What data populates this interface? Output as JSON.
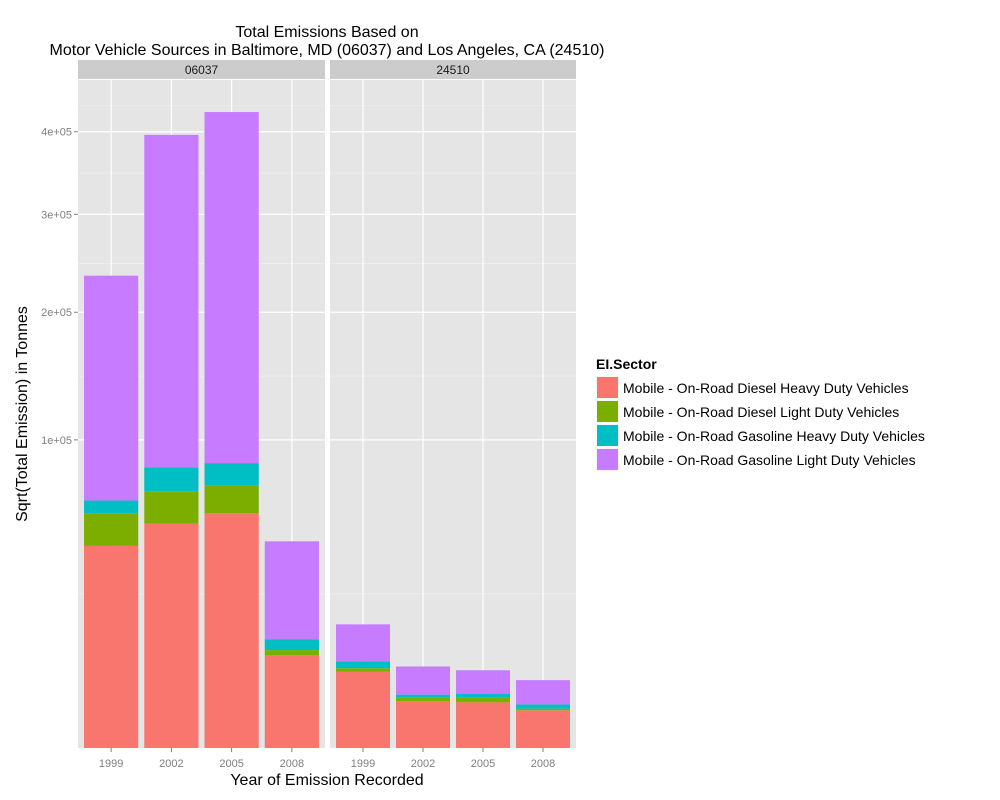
{
  "chart_data": {
    "type": "bar",
    "stacked": true,
    "title_lines": [
      "Total Emissions Based on",
      "Motor Vehicle Sources in Baltimore, MD (06037) and Los Angeles, CA (24510)"
    ],
    "xlabel": "Year of Emission Recorded",
    "ylabel": "Sqrt(Total Emission) in Tonnes",
    "y_scale": "sqrt",
    "ylim": [
      0,
      470000
    ],
    "y_ticks": [
      100000,
      200000,
      300000,
      400000
    ],
    "y_tick_labels": [
      "1e+05",
      "2e+05",
      "3e+05",
      "4e+05"
    ],
    "categories": [
      "1999",
      "2002",
      "2005",
      "2008"
    ],
    "grid": true,
    "legend_position": "right",
    "legend_title": "EI.Sector",
    "panels": [
      {
        "label": "06037",
        "series": [
          {
            "name": "Mobile - On-Road Diesel Heavy Duty Vehicles",
            "values": [
              43000,
              53000,
              58000,
              9100
            ]
          },
          {
            "name": "Mobile - On-Road Diesel Light Duty Vehicles",
            "values": [
              15000,
              16500,
              14500,
              1000
            ]
          },
          {
            "name": "Mobile - On-Road Gasoline Heavy Duty Vehicles",
            "values": [
              6500,
              13500,
              13000,
              2300
            ]
          },
          {
            "name": "Mobile - On-Road Gasoline Light Duty Vehicles",
            "values": [
              170500,
              313000,
              340500,
              32600
            ]
          }
        ]
      },
      {
        "label": "24510",
        "series": [
          {
            "name": "Mobile - On-Road Diesel Heavy Duty Vehicles",
            "values": [
              6100,
              2300,
              2200,
              1500
            ]
          },
          {
            "name": "Mobile - On-Road Diesel Light Duty Vehicles",
            "values": [
              600,
              350,
              450,
              130
            ]
          },
          {
            "name": "Mobile - On-Road Gasoline Heavy Duty Vehicles",
            "values": [
              1200,
              350,
              420,
              370
            ]
          },
          {
            "name": "Mobile - On-Road Gasoline Light Duty Vehicles",
            "values": [
              8200,
              4000,
              3300,
              2850
            ]
          }
        ]
      }
    ],
    "colors": [
      "#F8766D",
      "#7CAE00",
      "#00BFC4",
      "#C77CFF"
    ]
  }
}
